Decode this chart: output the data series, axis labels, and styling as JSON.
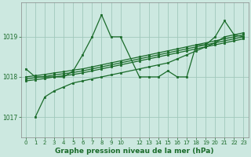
{
  "title": "Graphe pression niveau de la mer (hPa)",
  "background_color": "#cce8e0",
  "line_color": "#1a6b2a",
  "grid_color": "#a0c8bc",
  "xlim": [
    -0.5,
    23.5
  ],
  "ylim": [
    1016.5,
    1019.85
  ],
  "yticks": [
    1017,
    1018,
    1019
  ],
  "xticks": [
    0,
    1,
    2,
    3,
    4,
    5,
    6,
    7,
    8,
    9,
    10,
    12,
    13,
    14,
    15,
    16,
    17,
    18,
    19,
    20,
    21,
    22,
    23
  ],
  "series": [
    {
      "x": [
        0,
        1,
        2,
        3,
        4,
        5,
        6,
        7,
        8,
        9,
        10,
        12,
        13,
        14,
        15,
        16,
        17,
        18,
        19,
        20,
        21,
        22,
        23
      ],
      "y": [
        1018.2,
        1018.0,
        1018.0,
        1018.0,
        1018.0,
        1018.15,
        1018.55,
        1019.0,
        1019.55,
        1019.0,
        1019.0,
        1018.0,
        1018.0,
        1018.0,
        1018.15,
        1018.0,
        1018.0,
        1018.8,
        1018.8,
        1019.0,
        1019.4,
        1019.05,
        1019.0
      ]
    },
    {
      "x": [
        1,
        2,
        3,
        4,
        5,
        6,
        7,
        8,
        9,
        10,
        12,
        13,
        14,
        15,
        16,
        17,
        18,
        19,
        20,
        21,
        22,
        23
      ],
      "y": [
        1017.0,
        1017.5,
        1017.65,
        1017.75,
        1017.85,
        1017.9,
        1017.95,
        1018.0,
        1018.05,
        1018.1,
        1018.2,
        1018.25,
        1018.3,
        1018.35,
        1018.45,
        1018.55,
        1018.65,
        1018.75,
        1018.85,
        1019.0,
        1019.05,
        1019.1
      ]
    },
    {
      "x": [
        0,
        1,
        2,
        3,
        4,
        5,
        6,
        7,
        8,
        9,
        10,
        12,
        13,
        14,
        15,
        16,
        17,
        18,
        19,
        20,
        21,
        22,
        23
      ],
      "y": [
        1018.0,
        1018.03,
        1018.06,
        1018.1,
        1018.13,
        1018.17,
        1018.2,
        1018.25,
        1018.3,
        1018.35,
        1018.4,
        1018.5,
        1018.55,
        1018.6,
        1018.65,
        1018.7,
        1018.75,
        1018.8,
        1018.85,
        1018.9,
        1018.95,
        1019.0,
        1019.05
      ]
    },
    {
      "x": [
        0,
        1,
        2,
        3,
        4,
        5,
        6,
        7,
        8,
        9,
        10,
        12,
        13,
        14,
        15,
        16,
        17,
        18,
        19,
        20,
        21,
        22,
        23
      ],
      "y": [
        1017.95,
        1017.98,
        1018.01,
        1018.05,
        1018.08,
        1018.11,
        1018.15,
        1018.2,
        1018.25,
        1018.3,
        1018.35,
        1018.45,
        1018.5,
        1018.55,
        1018.6,
        1018.65,
        1018.7,
        1018.75,
        1018.8,
        1018.85,
        1018.9,
        1018.95,
        1019.0
      ]
    },
    {
      "x": [
        0,
        1,
        2,
        3,
        4,
        5,
        6,
        7,
        8,
        9,
        10,
        12,
        13,
        14,
        15,
        16,
        17,
        18,
        19,
        20,
        21,
        22,
        23
      ],
      "y": [
        1017.9,
        1017.93,
        1017.96,
        1018.0,
        1018.03,
        1018.06,
        1018.1,
        1018.15,
        1018.2,
        1018.25,
        1018.3,
        1018.4,
        1018.45,
        1018.5,
        1018.55,
        1018.6,
        1018.65,
        1018.7,
        1018.75,
        1018.8,
        1018.85,
        1018.9,
        1018.95
      ]
    }
  ]
}
